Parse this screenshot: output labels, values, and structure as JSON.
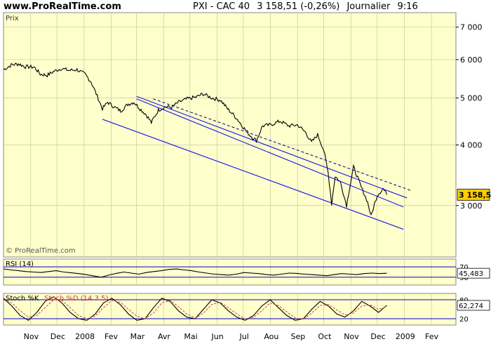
{
  "header": {
    "site": "www.ProRealTime.com",
    "instrument": "PXI - CAC 40",
    "last_quote": "3 158,51 (-0,26%)",
    "timeframe": "Journalier",
    "time": "9:16"
  },
  "watermark": "© ProRealTime.com",
  "chart_data": [
    {
      "type": "line",
      "panel": "price",
      "title": "Prix",
      "ylabel": "",
      "yscale": "log",
      "ylim": [
        2350,
        7500
      ],
      "yticks": [
        3000,
        4000,
        5000,
        6000,
        7000
      ],
      "ytick_labels": [
        "3 000",
        "4 000",
        "5 000",
        "6 000",
        "7 000"
      ],
      "current_value": 3158.51,
      "current_label": "3 158,51",
      "grid": true,
      "x_labels": [
        "Nov",
        "Dec",
        "2008",
        "Fev",
        "Mar",
        "Avr",
        "Mai",
        "Jun",
        "Jul",
        "Aou",
        "Sep",
        "Oct",
        "Nov",
        "Dec",
        "2009",
        "Fev"
      ],
      "price_path": [
        [
          "2007-10-01",
          5720
        ],
        [
          "2007-10-10",
          5850
        ],
        [
          "2007-10-18",
          5880
        ],
        [
          "2007-10-26",
          5800
        ],
        [
          "2007-11-05",
          5790
        ],
        [
          "2007-11-12",
          5600
        ],
        [
          "2007-11-20",
          5570
        ],
        [
          "2007-11-28",
          5680
        ],
        [
          "2007-12-06",
          5750
        ],
        [
          "2007-12-15",
          5700
        ],
        [
          "2007-12-24",
          5720
        ],
        [
          "2008-01-02",
          5600
        ],
        [
          "2008-01-09",
          5400
        ],
        [
          "2008-01-15",
          5100
        ],
        [
          "2008-01-22",
          4750
        ],
        [
          "2008-01-28",
          4900
        ],
        [
          "2008-02-04",
          4800
        ],
        [
          "2008-02-12",
          4700
        ],
        [
          "2008-02-20",
          4850
        ],
        [
          "2008-02-27",
          4900
        ],
        [
          "2008-03-05",
          4750
        ],
        [
          "2008-03-12",
          4620
        ],
        [
          "2008-03-18",
          4450
        ],
        [
          "2008-03-26",
          4720
        ],
        [
          "2008-04-03",
          4800
        ],
        [
          "2008-04-10",
          4780
        ],
        [
          "2008-04-18",
          4900
        ],
        [
          "2008-04-28",
          4980
        ],
        [
          "2008-05-08",
          5020
        ],
        [
          "2008-05-16",
          5100
        ],
        [
          "2008-05-26",
          5000
        ],
        [
          "2008-06-05",
          4950
        ],
        [
          "2008-06-13",
          4750
        ],
        [
          "2008-06-23",
          4550
        ],
        [
          "2008-07-01",
          4350
        ],
        [
          "2008-07-08",
          4200
        ],
        [
          "2008-07-16",
          4080
        ],
        [
          "2008-07-23",
          4380
        ],
        [
          "2008-08-01",
          4400
        ],
        [
          "2008-08-12",
          4480
        ],
        [
          "2008-08-22",
          4380
        ],
        [
          "2008-09-01",
          4400
        ],
        [
          "2008-09-10",
          4250
        ],
        [
          "2008-09-17",
          4050
        ],
        [
          "2008-09-24",
          4200
        ],
        [
          "2008-10-01",
          3900
        ],
        [
          "2008-10-06",
          3500
        ],
        [
          "2008-10-10",
          3020
        ],
        [
          "2008-10-14",
          3450
        ],
        [
          "2008-10-20",
          3350
        ],
        [
          "2008-10-27",
          3000
        ],
        [
          "2008-11-04",
          3600
        ],
        [
          "2008-11-12",
          3300
        ],
        [
          "2008-11-20",
          3050
        ],
        [
          "2008-11-24",
          2850
        ],
        [
          "2008-12-01",
          3150
        ],
        [
          "2008-12-08",
          3250
        ],
        [
          "2008-12-12",
          3158.51
        ]
      ],
      "trend_lines": [
        {
          "name": "",
          "style": "solid",
          "color": "#0000ee",
          "points": [
            [
              "2008-01-22",
              4520
            ],
            [
              "2008-12-31",
              2680
            ]
          ]
        },
        {
          "name": "",
          "style": "solid",
          "color": "#0000ee",
          "points": [
            [
              "2008-03-01",
              4980
            ],
            [
              "2008-12-31",
              2980
            ]
          ]
        },
        {
          "name": "",
          "style": "solid",
          "color": "#0000ee",
          "points": [
            [
              "2008-03-01",
              5040
            ],
            [
              "2009-01-04",
              3110
            ]
          ]
        },
        {
          "name": "",
          "style": "dashed",
          "color": "#000080",
          "points": [
            [
              "2008-03-20",
              4980
            ],
            [
              "2009-01-09",
              3220
            ]
          ]
        }
      ]
    },
    {
      "type": "line",
      "panel": "rsi",
      "title": "RSI (14)",
      "ylim": [
        0,
        100
      ],
      "levels": [
        30,
        70
      ],
      "level_labels": [
        "30",
        "70"
      ],
      "current_value": 45.483,
      "current_label": "45,483",
      "series": [
        {
          "name": "RSI (14)",
          "values": [
            62,
            58,
            55,
            52,
            50,
            48,
            52,
            55,
            50,
            47,
            44,
            40,
            35,
            30,
            38,
            45,
            50,
            46,
            42,
            48,
            52,
            55,
            60,
            62,
            58,
            55,
            50,
            46,
            42,
            40,
            38,
            42,
            48,
            46,
            44,
            40,
            38,
            42,
            46,
            45,
            42,
            40,
            38,
            36,
            40,
            44,
            42,
            40,
            44,
            46,
            44,
            45.483
          ]
        }
      ]
    },
    {
      "type": "line",
      "panel": "stochastic",
      "title": "Stoch %K",
      "series": [
        {
          "name": "Stoch %K",
          "color": "#000000",
          "values": [
            85,
            60,
            30,
            15,
            40,
            75,
            90,
            70,
            40,
            20,
            15,
            35,
            70,
            85,
            65,
            35,
            15,
            20,
            55,
            85,
            75,
            45,
            25,
            20,
            50,
            80,
            70,
            45,
            25,
            15,
            30,
            60,
            80,
            55,
            30,
            15,
            20,
            50,
            75,
            60,
            35,
            25,
            45,
            75,
            60,
            40,
            62.274
          ]
        },
        {
          "name": "Stoch %D (14 3 5)",
          "color": "#d04040",
          "values": [
            80,
            70,
            45,
            25,
            30,
            55,
            80,
            78,
            55,
            30,
            20,
            28,
            55,
            78,
            72,
            50,
            28,
            20,
            38,
            70,
            78,
            58,
            35,
            22,
            38,
            65,
            72,
            55,
            35,
            20,
            25,
            45,
            70,
            62,
            42,
            22,
            18,
            38,
            62,
            65,
            48,
            32,
            38,
            60,
            64,
            50,
            58
          ]
        }
      ],
      "ylim": [
        0,
        100
      ],
      "levels": [
        20,
        80
      ],
      "level_labels": [
        "20",
        "80"
      ],
      "current_value": 62.274,
      "current_label": "62,274"
    }
  ],
  "colors": {
    "background": "#ffffcc",
    "price": "#000000",
    "trend": "#0000ee",
    "current_label_bg": "#ffcc00"
  }
}
